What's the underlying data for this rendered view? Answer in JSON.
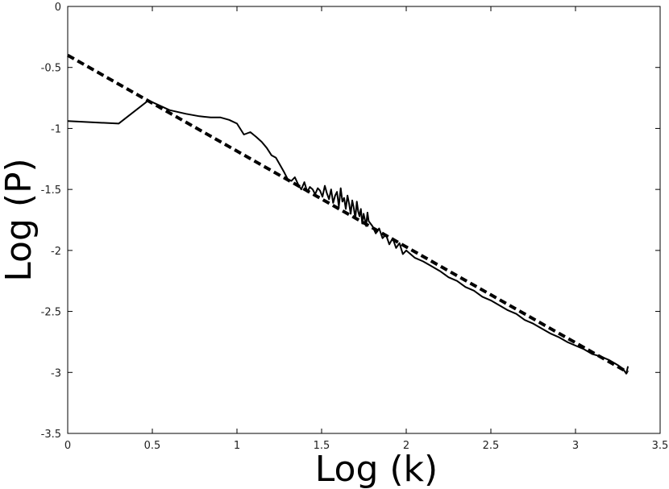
{
  "chart_data": {
    "type": "line",
    "title": "",
    "xlabel": "Log (k)",
    "ylabel": "Log (P)",
    "xlim": [
      0,
      3.5
    ],
    "ylim": [
      -3.5,
      0
    ],
    "xticks": [
      0,
      0.5,
      1,
      1.5,
      2,
      2.5,
      3,
      3.5
    ],
    "xtick_labels": [
      "0",
      "0.5",
      "1",
      "1.5",
      "2",
      "2.5",
      "3",
      "3.5"
    ],
    "yticks": [
      0,
      -0.5,
      -1,
      -1.5,
      -2,
      -2.5,
      -3,
      -3.5
    ],
    "ytick_labels": [
      "0",
      "-0.5",
      "-1",
      "-1.5",
      "-2",
      "-2.5",
      "-3",
      "-3.5"
    ],
    "grid": false,
    "legend": "none",
    "series": [
      {
        "style": "solid",
        "color": "#000000",
        "x": [
          0,
          0.301,
          0.477,
          0.602,
          0.699,
          0.778,
          0.845,
          0.903,
          0.954,
          1.0,
          1.041,
          1.079,
          1.114,
          1.146,
          1.176,
          1.204,
          1.23,
          1.255,
          1.279,
          1.301,
          1.322,
          1.342,
          1.362,
          1.38,
          1.398,
          1.415,
          1.431,
          1.447,
          1.462,
          1.477,
          1.491,
          1.505,
          1.519,
          1.531,
          1.544,
          1.556,
          1.568,
          1.58,
          1.591,
          1.602,
          1.613,
          1.623,
          1.633,
          1.643,
          1.653,
          1.663,
          1.672,
          1.681,
          1.69,
          1.699,
          1.708,
          1.716,
          1.724,
          1.732,
          1.74,
          1.748,
          1.756,
          1.763,
          1.771,
          1.778,
          1.8,
          1.82,
          1.84,
          1.86,
          1.88,
          1.9,
          1.92,
          1.94,
          1.96,
          1.98,
          2.0,
          2.05,
          2.1,
          2.15,
          2.2,
          2.25,
          2.3,
          2.35,
          2.4,
          2.45,
          2.5,
          2.55,
          2.6,
          2.65,
          2.7,
          2.75,
          2.8,
          2.85,
          2.9,
          2.95,
          3.0,
          3.05,
          3.1,
          3.15,
          3.2,
          3.25,
          3.28,
          3.3,
          3.31
        ],
        "y": [
          -0.94,
          -0.96,
          -0.77,
          -0.85,
          -0.88,
          -0.9,
          -0.91,
          -0.91,
          -0.93,
          -0.96,
          -1.05,
          -1.03,
          -1.07,
          -1.11,
          -1.16,
          -1.22,
          -1.24,
          -1.3,
          -1.36,
          -1.42,
          -1.43,
          -1.4,
          -1.46,
          -1.5,
          -1.44,
          -1.52,
          -1.48,
          -1.5,
          -1.54,
          -1.49,
          -1.51,
          -1.56,
          -1.47,
          -1.53,
          -1.58,
          -1.5,
          -1.61,
          -1.55,
          -1.52,
          -1.64,
          -1.49,
          -1.6,
          -1.57,
          -1.66,
          -1.55,
          -1.62,
          -1.7,
          -1.59,
          -1.65,
          -1.74,
          -1.6,
          -1.68,
          -1.72,
          -1.66,
          -1.78,
          -1.7,
          -1.75,
          -1.8,
          -1.69,
          -1.76,
          -1.8,
          -1.86,
          -1.82,
          -1.9,
          -1.87,
          -1.95,
          -1.9,
          -1.98,
          -1.94,
          -2.03,
          -2.0,
          -2.06,
          -2.09,
          -2.13,
          -2.17,
          -2.22,
          -2.25,
          -2.3,
          -2.33,
          -2.38,
          -2.41,
          -2.45,
          -2.49,
          -2.52,
          -2.57,
          -2.6,
          -2.64,
          -2.68,
          -2.71,
          -2.75,
          -2.78,
          -2.81,
          -2.85,
          -2.87,
          -2.9,
          -2.94,
          -2.97,
          -3.01,
          -2.95
        ]
      },
      {
        "style": "dashed",
        "color": "#000000",
        "x": [
          0,
          3.31
        ],
        "y": [
          -0.4,
          -3.0
        ]
      }
    ]
  }
}
